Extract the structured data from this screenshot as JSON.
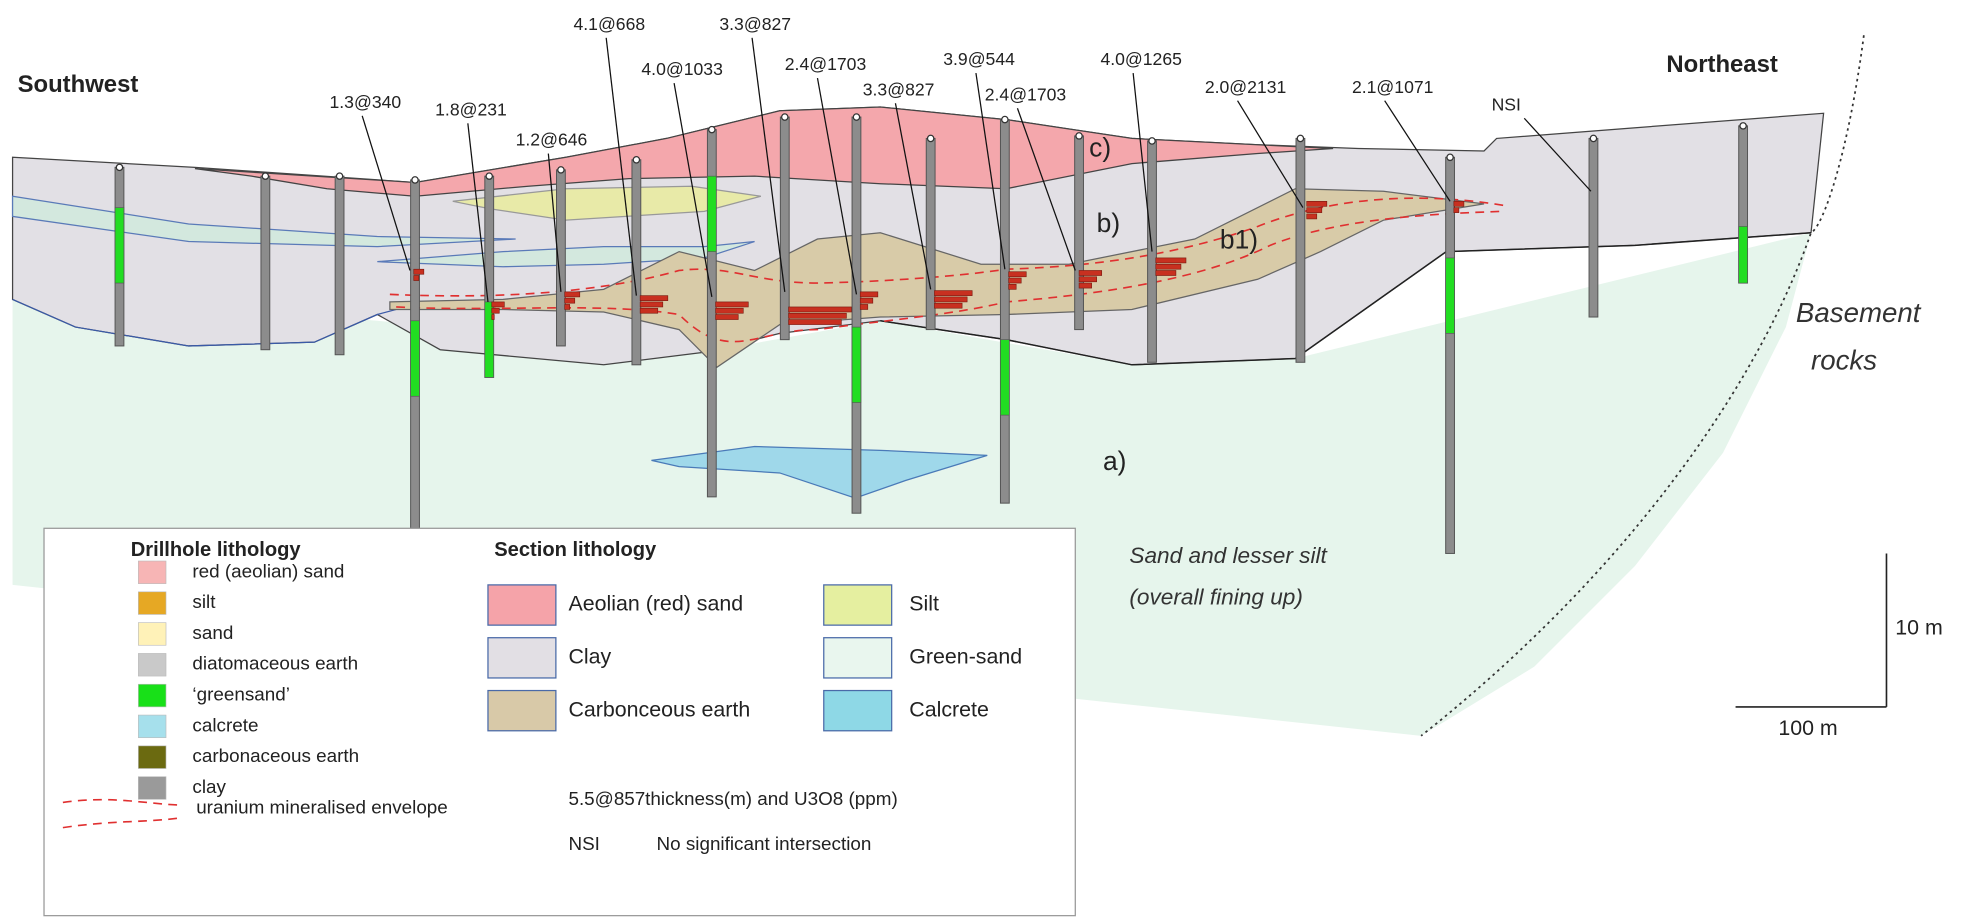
{
  "directions": {
    "left": "Southwest",
    "right": "Northeast"
  },
  "drillhole_labels": [
    "1.3@340",
    "1.8@231",
    "1.2@646",
    "4.1@668",
    "4.0@1033",
    "3.3@827",
    "2.4@1703",
    "3.3@827",
    "3.9@544",
    "2.4@1703",
    "4.0@1265",
    "2.0@2131",
    "2.1@1071",
    "NSI"
  ],
  "zones": {
    "c": "c)",
    "b": "b)",
    "b1": "b1)",
    "a": "a)"
  },
  "annotations": {
    "basement": [
      "Basement",
      "rocks"
    ],
    "sand": [
      "Sand and lesser silt",
      "(overall fining up)"
    ]
  },
  "scale": {
    "vertical": "10 m",
    "horizontal": "100 m"
  },
  "legend": {
    "drillhole_title": "Drillhole lithology",
    "drillhole_items": [
      "red (aeolian) sand",
      "silt",
      "sand",
      "diatomaceous earth",
      "‘greensand’",
      "calcrete",
      "carbonaceous earth",
      "clay"
    ],
    "envelope": "uranium mineralised envelope",
    "section_title": "Section lithology",
    "section_items": [
      "Aeolian (red) sand",
      "Clay",
      "Carbonceous earth",
      "Silt",
      "Green-sand",
      "Calcrete"
    ],
    "example_code": "5.5@857",
    "example_text": "thickness(m) and U3O8 (ppm)",
    "nsi_code": "NSI",
    "nsi_text": "No significant intersection"
  }
}
